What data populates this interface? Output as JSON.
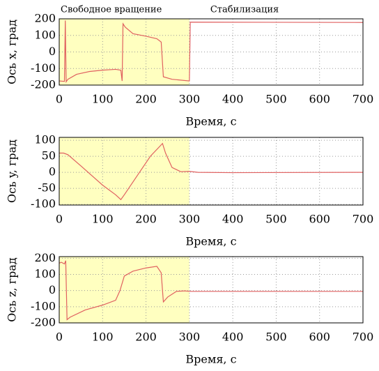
{
  "chart_data": [
    {
      "type": "line",
      "annotations": [
        "Свободное вращение",
        "Стабилизация"
      ],
      "xlabel": "Время, с",
      "ylabel": "Ось x, град",
      "x": [
        0,
        12,
        14,
        16,
        20,
        40,
        70,
        100,
        130,
        142,
        145,
        147,
        152,
        170,
        200,
        225,
        235,
        240,
        260,
        300,
        302,
        700
      ],
      "values": [
        -175,
        -178,
        190,
        -180,
        -165,
        -135,
        -118,
        -110,
        -105,
        -110,
        -175,
        170,
        150,
        110,
        95,
        80,
        60,
        -150,
        -165,
        -175,
        180,
        178
      ],
      "color": "#e06060",
      "shade": [
        0,
        300
      ],
      "shade_color": "#ffffc0",
      "xlim": [
        0,
        700
      ],
      "xticks": [
        0,
        100,
        200,
        300,
        400,
        500,
        600,
        700
      ],
      "ylim": [
        -200,
        200
      ],
      "yticks": [
        -200,
        -100,
        0,
        100,
        200
      ],
      "grid": true
    },
    {
      "type": "line",
      "xlabel": "Время, с",
      "ylabel": "Ось y, град",
      "x": [
        0,
        10,
        20,
        50,
        100,
        130,
        142,
        150,
        180,
        210,
        238,
        245,
        260,
        280,
        300,
        320,
        400,
        700
      ],
      "values": [
        60,
        60,
        55,
        20,
        -40,
        -70,
        -85,
        -70,
        -10,
        50,
        90,
        60,
        15,
        2,
        3,
        0,
        -1,
        0
      ],
      "color": "#e06060",
      "shade": [
        0,
        300
      ],
      "shade_color": "#ffffc0",
      "xlim": [
        0,
        700
      ],
      "xticks": [
        0,
        100,
        200,
        300,
        400,
        500,
        600,
        700
      ],
      "ylim": [
        -102,
        109
      ],
      "yticks": [
        -100,
        -50,
        0,
        50,
        100
      ],
      "grid": true
    },
    {
      "type": "line",
      "xlabel": "Время, с",
      "ylabel": "Ось z, град",
      "x": [
        0,
        5,
        12,
        15,
        18,
        25,
        60,
        100,
        130,
        140,
        150,
        170,
        200,
        225,
        235,
        240,
        250,
        270,
        290,
        300,
        700
      ],
      "values": [
        170,
        175,
        165,
        185,
        -180,
        -165,
        -120,
        -90,
        -60,
        0,
        90,
        120,
        140,
        150,
        110,
        -70,
        -40,
        -5,
        -2,
        -5,
        -5
      ],
      "color": "#e06060",
      "shade": [
        0,
        300
      ],
      "shade_color": "#ffffc0",
      "xlim": [
        0,
        700
      ],
      "xticks": [
        0,
        100,
        200,
        300,
        400,
        500,
        600,
        700
      ],
      "ylim": [
        -200,
        210
      ],
      "yticks": [
        -200,
        -100,
        0,
        100,
        200
      ],
      "grid": true
    }
  ]
}
